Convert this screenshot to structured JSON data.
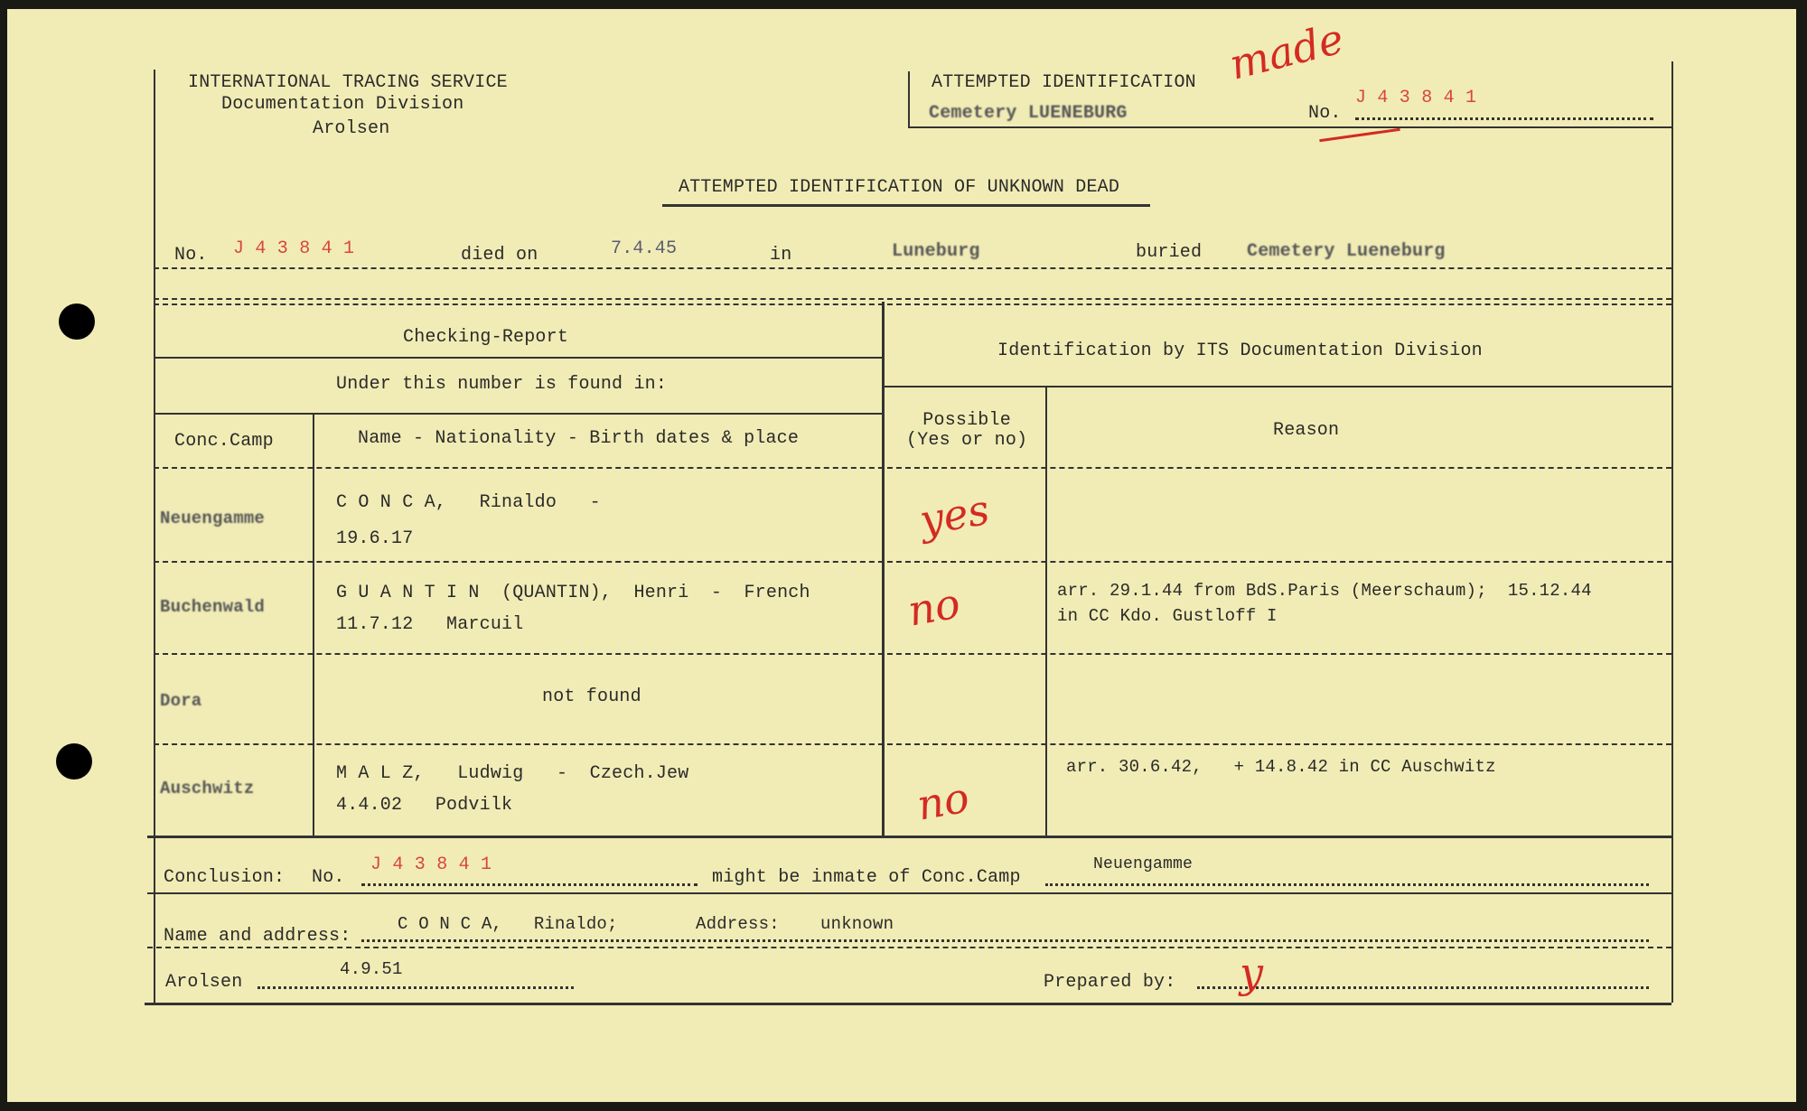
{
  "header": {
    "org_line1": "INTERNATIONAL TRACING SERVICE",
    "org_line2": "Documentation Division",
    "org_line3": "Arolsen",
    "box_title": "ATTEMPTED IDENTIFICATION",
    "box_cemetery": "Cemetery LUENEBURG",
    "box_no_label": "No.",
    "box_no_value": "J 4 3 8 4 1",
    "handwritten_note": "made"
  },
  "title": "ATTEMPTED IDENTIFICATION OF UNKNOWN DEAD",
  "record": {
    "no_label": "No.",
    "no_value": "J 4 3 8 4 1",
    "died_label": "died on",
    "died_value": "7.4.45",
    "in_label": "in",
    "in_value": "Luneburg",
    "buried_label": "buried",
    "buried_value": "Cemetery Lueneburg"
  },
  "table": {
    "checking_report": "Checking-Report",
    "under_number": "Under this number is found in:",
    "col_camp": "Conc.Camp",
    "col_name": "Name - Nationality - Birth dates & place",
    "identification_header": "Identification by ITS Documentation Division",
    "col_possible": "Possible\n(Yes or no)",
    "col_reason": "Reason",
    "rows": [
      {
        "camp": "Neuengamme",
        "name_line1": "C O N C A,   Rinaldo   -",
        "name_line2": "19.6.17",
        "possible": "yes",
        "reason": ""
      },
      {
        "camp": "Buchenwald",
        "name_line1": "G U A N T I N  (QUANTIN),  Henri  -  French",
        "name_line2": "11.7.12   Marcuil",
        "possible": "no",
        "reason": "arr. 29.1.44 from BdS.Paris (Meerschaum);  15.12.44\nin CC Kdo. Gustloff I"
      },
      {
        "camp": "Dora",
        "name_line1": "not found",
        "name_line2": "",
        "possible": "",
        "reason": ""
      },
      {
        "camp": "Auschwitz",
        "name_line1": "M A L Z,   Ludwig   -  Czech.Jew",
        "name_line2": "4.4.02   Podvilk",
        "possible": "no",
        "reason": "arr. 30.6.42,   + 14.8.42 in CC Auschwitz"
      }
    ]
  },
  "conclusion": {
    "label": "Conclusion:",
    "no_label": "No.",
    "no_value": "J 4 3 8 4 1",
    "might_be": "might be inmate of Conc.Camp",
    "camp_value": "Neuengamme",
    "name_label": "Name and address:",
    "name_value": "C O N C A,   Rinaldo;",
    "address_label": "Address:",
    "address_value": "unknown",
    "place_label": "Arolsen",
    "date_value": "4.9.51",
    "prepared_label": "Prepared by:",
    "prepared_initial": "y"
  }
}
